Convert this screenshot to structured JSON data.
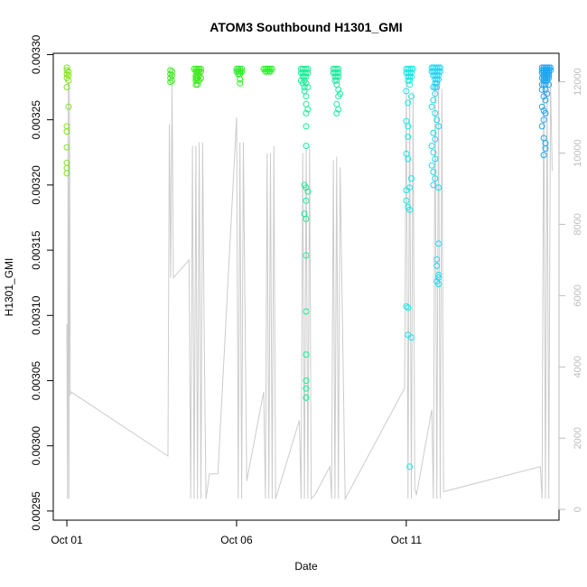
{
  "chart_data": {
    "type": "scatter",
    "title": "ATOM3 Southbound H1301_GMI",
    "xlabel": "Date",
    "ylabel": "H1301_GMI",
    "x_ticks": [
      "Oct 01",
      "Oct 06",
      "Oct 11"
    ],
    "x_tick_days": [
      1,
      6,
      11
    ],
    "xlim_days": [
      0.6,
      15.5
    ],
    "y_left_ticks": [
      "0.00295",
      "0.00300",
      "0.00305",
      "0.00310",
      "0.00315",
      "0.00320",
      "0.00325",
      "0.00330"
    ],
    "y_left_tick_values": [
      0.00295,
      0.003,
      0.00305,
      0.0031,
      0.00315,
      0.0032,
      0.00325,
      0.0033
    ],
    "ylim_left": [
      0.002943,
      0.003301
    ],
    "y_right_ticks": [
      "0",
      "2000",
      "4000",
      "6000",
      "8000",
      "10000",
      "12000"
    ],
    "y_right_tick_values": [
      0,
      2000,
      4000,
      6000,
      8000,
      10000,
      12000
    ],
    "ylim_right": [
      -300,
      12800
    ],
    "grid": false,
    "colors": {
      "altitude_line": "#cccccc",
      "frame": "#000000",
      "right_axis": "#bdbdbd",
      "day1": "#84e21c",
      "day4": "#3de81c",
      "day6": "#2bf02a",
      "day8": "#1eeb96",
      "day9": "#1ee8a0",
      "day11": "#1ee5e8",
      "day12": "#1ed8f0",
      "day15": "#1ea6f0"
    },
    "series": [
      {
        "color_key": "day1",
        "x": [
          1.0,
          1.0,
          1.05,
          1.0,
          1.05,
          1.0,
          1.05,
          1.0,
          1.05,
          1.0,
          1.0,
          1.0,
          1.0,
          1.0,
          1.0
        ],
        "y": [
          0.00329,
          0.003288,
          0.003287,
          0.003285,
          0.003284,
          0.003282,
          0.00328,
          0.003275,
          0.00326,
          0.003245,
          0.003241,
          0.003229,
          0.003217,
          0.003213,
          0.003209
        ]
      },
      {
        "color_key": "day4",
        "x": [
          4.05,
          4.1,
          4.05,
          4.1,
          4.05,
          4.1,
          4.05
        ],
        "y": [
          0.003288,
          0.003287,
          0.003285,
          0.003284,
          0.003282,
          0.00328,
          0.003279
        ]
      },
      {
        "color_key": "day4",
        "x": [
          4.75,
          4.8,
          4.85,
          4.9,
          4.95,
          4.8,
          4.85,
          4.9,
          4.95,
          4.8,
          4.85,
          4.9,
          4.8,
          4.85,
          4.95,
          4.8,
          4.85,
          4.9,
          4.8,
          4.85
        ],
        "y": [
          0.003289,
          0.003289,
          0.003289,
          0.003289,
          0.003289,
          0.003287,
          0.003287,
          0.003287,
          0.003287,
          0.003284,
          0.003284,
          0.003284,
          0.003282,
          0.003282,
          0.003282,
          0.00328,
          0.00328,
          0.00328,
          0.003277,
          0.003277
        ]
      },
      {
        "color_key": "day6",
        "x": [
          6.0,
          6.05,
          6.1,
          6.15,
          6.0,
          6.05,
          6.1,
          6.15,
          6.05,
          6.1,
          6.1,
          6.1
        ],
        "y": [
          0.003289,
          0.003289,
          0.003289,
          0.003289,
          0.003287,
          0.003287,
          0.003287,
          0.003287,
          0.003285,
          0.003285,
          0.003281,
          0.003278
        ]
      },
      {
        "color_key": "day6",
        "x": [
          6.8,
          6.85,
          6.9,
          6.95,
          7.0,
          7.05,
          6.85,
          6.9,
          6.95,
          7.0
        ],
        "y": [
          0.003289,
          0.003289,
          0.003289,
          0.003289,
          0.003289,
          0.003289,
          0.003287,
          0.003287,
          0.003287,
          0.003287
        ]
      },
      {
        "color_key": "day8",
        "x": [
          7.9,
          7.95,
          8.0,
          8.05,
          8.1,
          7.9,
          7.95,
          8.0,
          8.05,
          8.1,
          7.95,
          8.0,
          8.05,
          7.9,
          8.0,
          7.95,
          8.05,
          8.0,
          8.1,
          8.0,
          8.05,
          8.05,
          8.1,
          8.05,
          8.05,
          8.05,
          8.0,
          8.05,
          8.1,
          8.05,
          8.0,
          8.05,
          8.05,
          8.05,
          8.05,
          8.05,
          8.05,
          8.05,
          8.05
        ],
        "y": [
          0.003289,
          0.003289,
          0.003289,
          0.003289,
          0.003289,
          0.003286,
          0.003286,
          0.003286,
          0.003286,
          0.003286,
          0.003283,
          0.003283,
          0.003283,
          0.00328,
          0.00328,
          0.003278,
          0.003278,
          0.003275,
          0.003275,
          0.003272,
          0.003268,
          0.003262,
          0.003258,
          0.003255,
          0.003245,
          0.00323,
          0.0032,
          0.003198,
          0.003195,
          0.003188,
          0.003178,
          0.003174,
          0.003146,
          0.003103,
          0.00307,
          0.00305,
          0.003044,
          0.003037,
          0.003037
        ]
      },
      {
        "color_key": "day9",
        "x": [
          8.85,
          8.9,
          8.95,
          9.0,
          8.85,
          8.9,
          8.95,
          9.0,
          8.9,
          8.95,
          9.0,
          8.9,
          8.95,
          8.95,
          9.0,
          9.05,
          9.0,
          8.95,
          9.0,
          8.95
        ],
        "y": [
          0.003289,
          0.003289,
          0.003289,
          0.003289,
          0.003286,
          0.003286,
          0.003286,
          0.003286,
          0.003283,
          0.003283,
          0.003283,
          0.00328,
          0.00328,
          0.003277,
          0.003273,
          0.00327,
          0.003268,
          0.003262,
          0.003258,
          0.003255
        ]
      },
      {
        "color_key": "day11",
        "x": [
          11.0,
          11.05,
          11.1,
          11.15,
          11.2,
          11.0,
          11.05,
          11.1,
          11.15,
          11.05,
          11.1,
          11.15,
          11.05,
          11.1,
          11.1,
          11.0,
          11.15,
          11.05,
          11.0,
          11.05,
          11.05,
          11.0,
          11.05,
          11.15,
          11.1,
          11.0,
          11.0,
          11.05,
          11.1,
          11.0,
          11.05,
          11.05,
          11.15,
          11.1
        ],
        "y": [
          0.003289,
          0.003289,
          0.003289,
          0.003289,
          0.003289,
          0.003286,
          0.003286,
          0.003286,
          0.003286,
          0.003283,
          0.003283,
          0.003283,
          0.00328,
          0.00328,
          0.003277,
          0.003272,
          0.003268,
          0.003263,
          0.003249,
          0.003245,
          0.003237,
          0.003224,
          0.00322,
          0.003205,
          0.003198,
          0.003196,
          0.003188,
          0.003183,
          0.003181,
          0.003107,
          0.003106,
          0.003085,
          0.003083,
          0.002984
        ]
      },
      {
        "color_key": "day12",
        "x": [
          11.75,
          11.8,
          11.85,
          11.9,
          11.95,
          12.0,
          11.75,
          11.8,
          11.85,
          11.9,
          11.95,
          12.0,
          11.8,
          11.85,
          11.9,
          11.95,
          11.85,
          11.9,
          11.95,
          11.85,
          11.9,
          11.8,
          11.85,
          11.9,
          11.85,
          11.8,
          11.75,
          11.85,
          11.9,
          11.95,
          11.8,
          11.85,
          11.75,
          11.8,
          11.85,
          11.75,
          11.8,
          11.85,
          11.8,
          11.95,
          11.95,
          11.9,
          11.9,
          11.95,
          11.95,
          11.9,
          11.95
        ],
        "y": [
          0.00329,
          0.00329,
          0.00329,
          0.00329,
          0.00329,
          0.00329,
          0.003287,
          0.003287,
          0.003287,
          0.003287,
          0.003287,
          0.003287,
          0.003284,
          0.003284,
          0.003284,
          0.003284,
          0.003281,
          0.003281,
          0.003281,
          0.003278,
          0.003278,
          0.003275,
          0.003275,
          0.003275,
          0.00327,
          0.003265,
          0.00326,
          0.003255,
          0.00325,
          0.003245,
          0.00324,
          0.003235,
          0.00323,
          0.003225,
          0.00322,
          0.003215,
          0.00321,
          0.003205,
          0.0032,
          0.003198,
          0.003155,
          0.003143,
          0.003138,
          0.003131,
          0.003129,
          0.003126,
          0.003124
        ]
      },
      {
        "color_key": "day15",
        "x": [
          15.0,
          15.05,
          15.1,
          15.15,
          15.2,
          15.25,
          15.0,
          15.05,
          15.1,
          15.15,
          15.2,
          15.25,
          15.0,
          15.05,
          15.1,
          15.15,
          15.2,
          15.05,
          15.1,
          15.15,
          15.2,
          15.0,
          15.05,
          15.1,
          15.15,
          15.2,
          15.05,
          15.1,
          15.15,
          15.0,
          15.05,
          15.1,
          15.2,
          15.0,
          15.1,
          15.15,
          15.05,
          15.1,
          15.0,
          15.05,
          15.1,
          15.05,
          15.0,
          15.05,
          15.1,
          15.1,
          15.05
        ],
        "y": [
          0.00329,
          0.00329,
          0.00329,
          0.00329,
          0.00329,
          0.00329,
          0.003288,
          0.003288,
          0.003288,
          0.003288,
          0.003288,
          0.003288,
          0.003286,
          0.003286,
          0.003286,
          0.003286,
          0.003286,
          0.003284,
          0.003284,
          0.003284,
          0.003284,
          0.003282,
          0.003282,
          0.003282,
          0.003282,
          0.003282,
          0.00328,
          0.00328,
          0.00328,
          0.003277,
          0.003277,
          0.003277,
          0.003277,
          0.003273,
          0.003273,
          0.00327,
          0.003268,
          0.003265,
          0.00326,
          0.003257,
          0.003255,
          0.00325,
          0.003245,
          0.003236,
          0.003232,
          0.003228,
          0.003223
        ]
      }
    ],
    "altitude_line": {
      "color_key": "altitude_line",
      "x": [
        1.0,
        1.02,
        1.04,
        1.06,
        1.08,
        1.1,
        1.12,
        3.98,
        4.02,
        4.06,
        4.1,
        4.14,
        4.6,
        4.65,
        4.7,
        4.75,
        4.8,
        4.85,
        4.9,
        4.95,
        5.0,
        5.05,
        5.1,
        5.2,
        5.45,
        6.0,
        6.05,
        6.1,
        6.15,
        6.2,
        6.3,
        6.8,
        6.85,
        6.9,
        6.95,
        7.0,
        7.05,
        7.1,
        7.15,
        7.85,
        7.9,
        7.95,
        8.0,
        8.05,
        8.1,
        8.15,
        8.2,
        8.3,
        8.75,
        8.8,
        8.85,
        8.9,
        8.95,
        9.0,
        9.05,
        9.1,
        9.2,
        10.95,
        11.0,
        11.05,
        11.1,
        11.15,
        11.2,
        11.25,
        11.3,
        11.75,
        11.8,
        11.85,
        11.9,
        11.95,
        12.0,
        12.05,
        12.1,
        14.95,
        15.0,
        15.05,
        15.1,
        15.15,
        15.2,
        15.25,
        15.3
      ],
      "alt": [
        5200,
        300,
        12000,
        300,
        12000,
        3200,
        3300,
        1500,
        10800,
        6500,
        12000,
        6500,
        7000,
        300,
        10200,
        300,
        10200,
        300,
        10300,
        300,
        10300,
        4700,
        300,
        1000,
        1000,
        11000,
        300,
        10300,
        300,
        10300,
        800,
        3300,
        300,
        10000,
        300,
        10000,
        300,
        10200,
        300,
        2500,
        300,
        10000,
        300,
        10100,
        300,
        10200,
        300,
        400,
        1200,
        300,
        9800,
        300,
        9900,
        300,
        9600,
        6500,
        300,
        3400,
        12000,
        300,
        11600,
        300,
        11700,
        600,
        400,
        2800,
        300,
        12000,
        300,
        12000,
        300,
        11800,
        500,
        1200,
        300,
        12000,
        300,
        12000,
        300,
        12000,
        9500
      ]
    }
  }
}
